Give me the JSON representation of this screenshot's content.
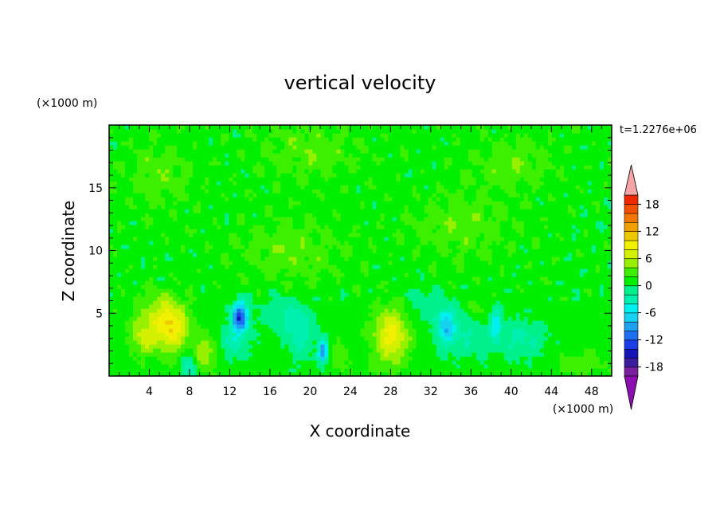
{
  "chart_data": {
    "type": "heatmap",
    "title": "vertical velocity",
    "xlabel": "X coordinate",
    "ylabel": "Z coordinate",
    "x_unit": "(×1000 m)",
    "y_unit": "(×1000 m)",
    "time_label": "t=1.2276e+06",
    "xlim": [
      0,
      50
    ],
    "ylim": [
      0,
      20
    ],
    "x_ticks": [
      4,
      8,
      12,
      16,
      20,
      24,
      28,
      32,
      36,
      40,
      44,
      48
    ],
    "y_ticks": [
      5,
      10,
      15
    ],
    "colorbar": {
      "labels": [
        "18",
        "12",
        "6",
        "0",
        "-6",
        "-12",
        "-18"
      ],
      "label_values": [
        18,
        12,
        6,
        0,
        -6,
        -12,
        -18
      ],
      "levels": [
        -20,
        -18,
        -16,
        -14,
        -12,
        -10,
        -8,
        -6,
        -4,
        -2,
        0,
        2,
        4,
        6,
        8,
        10,
        12,
        14,
        16,
        18,
        20
      ],
      "colors": [
        "#7a1fa0",
        "#3a1c9c",
        "#1414b8",
        "#1c3ce8",
        "#1e6ef0",
        "#1ea0f0",
        "#14d2f0",
        "#00f0f0",
        "#00f0b0",
        "#00f08c",
        "#00f000",
        "#3cf000",
        "#96f000",
        "#d2f000",
        "#f0f000",
        "#f0c800",
        "#f0a000",
        "#f07800",
        "#f05000",
        "#f02800"
      ],
      "over_color": "#f5a5a5",
      "under_color": "#8c10b0"
    },
    "background_value": 1,
    "features": [
      {
        "x": 3.5,
        "z": 3.3,
        "amp": 5.5,
        "sx": 1.4,
        "sz": 1.5
      },
      {
        "x": 6.2,
        "z": 3.8,
        "amp": 8.5,
        "sx": 1.6,
        "sz": 1.8
      },
      {
        "x": 9.5,
        "z": 1.8,
        "amp": 5,
        "sx": 1.1,
        "sz": 1.3
      },
      {
        "x": 5,
        "z": 5.5,
        "amp": 3,
        "sx": 2.2,
        "sz": 1.5
      },
      {
        "x": 8,
        "z": 0.8,
        "amp": -5,
        "sx": 0.7,
        "sz": 1
      },
      {
        "x": 13,
        "z": 4.8,
        "amp": -14,
        "sx": 0.8,
        "sz": 1.1
      },
      {
        "x": 12.5,
        "z": 2.8,
        "amp": -4,
        "sx": 1.4,
        "sz": 1.5
      },
      {
        "x": 21.3,
        "z": 2,
        "amp": -11,
        "sx": 0.5,
        "sz": 0.9
      },
      {
        "x": 19,
        "z": 3.5,
        "amp": -4,
        "sx": 1.5,
        "sz": 2
      },
      {
        "x": 17,
        "z": 5,
        "amp": -2.5,
        "sx": 2.2,
        "sz": 1.5
      },
      {
        "x": 28,
        "z": 2.8,
        "amp": 6.5,
        "sx": 1.7,
        "sz": 2
      },
      {
        "x": 28.5,
        "z": 4.5,
        "amp": 3,
        "sx": 2,
        "sz": 1.5
      },
      {
        "x": 33.5,
        "z": 4,
        "amp": -7,
        "sx": 0.9,
        "sz": 1.5
      },
      {
        "x": 35.5,
        "z": 3.5,
        "amp": -3,
        "sx": 2.5,
        "sz": 2
      },
      {
        "x": 36.5,
        "z": 5.2,
        "amp": 3,
        "sx": 0.8,
        "sz": 1.2
      },
      {
        "x": 38.5,
        "z": 4.2,
        "amp": -6,
        "sx": 0.5,
        "sz": 1.3
      },
      {
        "x": 41,
        "z": 3,
        "amp": -3.5,
        "sx": 2.5,
        "sz": 1.6
      },
      {
        "x": 47,
        "z": 1,
        "amp": 2.5,
        "sx": 2,
        "sz": 1
      },
      {
        "x": 23,
        "z": 1.5,
        "amp": 2.5,
        "sx": 1,
        "sz": 1.2
      },
      {
        "x": 31,
        "z": 5.5,
        "amp": -2.5,
        "sx": 2,
        "sz": 1.5
      },
      {
        "x": 5,
        "z": 16,
        "amp": 2.5,
        "sx": 3,
        "sz": 2.5
      },
      {
        "x": 40,
        "z": 17,
        "amp": 2.5,
        "sx": 4,
        "sz": 2
      },
      {
        "x": 35,
        "z": 12,
        "amp": 2.5,
        "sx": 5,
        "sz": 2.5
      },
      {
        "x": 20,
        "z": 18,
        "amp": 2.5,
        "sx": 5,
        "sz": 2
      },
      {
        "x": 18,
        "z": 10,
        "amp": 2.5,
        "sx": 5,
        "sz": 2.5
      }
    ]
  }
}
